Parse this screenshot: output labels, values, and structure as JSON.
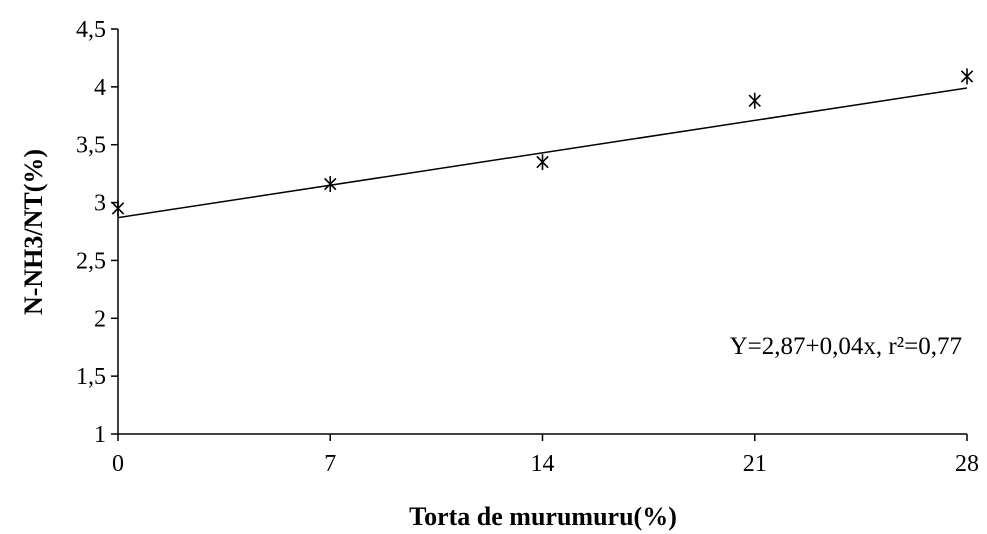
{
  "chart_data": {
    "type": "scatter",
    "xlabel": "Torta de murumuru(%)",
    "ylabel": "N-NH3/NT(%)",
    "x_ticks": [
      "0",
      "7",
      "14",
      "21",
      "28"
    ],
    "y_ticks": [
      "1",
      "1,5",
      "2",
      "2,5",
      "3",
      "3,5",
      "4",
      "4,5"
    ],
    "xlim": [
      0,
      28
    ],
    "ylim": [
      1,
      4.5
    ],
    "grid": false,
    "marker": "asterisk",
    "series": [
      {
        "x": [
          0,
          7,
          14,
          21,
          28
        ],
        "y": [
          2.95,
          3.16,
          3.35,
          3.88,
          4.09
        ]
      }
    ],
    "trendline": {
      "intercept": 2.87,
      "slope": 0.04
    },
    "annotation": "Y=2,87+0,04x, r²=0,77"
  }
}
